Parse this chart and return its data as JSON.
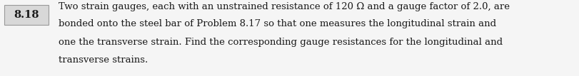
{
  "problem_number": "8.18",
  "text_lines": [
    "Two strain gauges, each with an unstrained resistance of 120 Ω and a gauge factor of 2.0, are",
    "bonded onto the steel bar of Problem 8.17 so that one measures the longitudinal strain and",
    "one the transverse strain. Find the corresponding gauge resistances for the longitudinal and",
    "transverse strains."
  ],
  "box_facecolor": "#d8d8d8",
  "box_edgecolor": "#999999",
  "text_color": "#1a1a1a",
  "background_color": "#f5f5f5",
  "font_size": 9.5,
  "number_font_size": 10.5,
  "fig_width": 8.11,
  "fig_height": 1.07,
  "dpi": 100
}
